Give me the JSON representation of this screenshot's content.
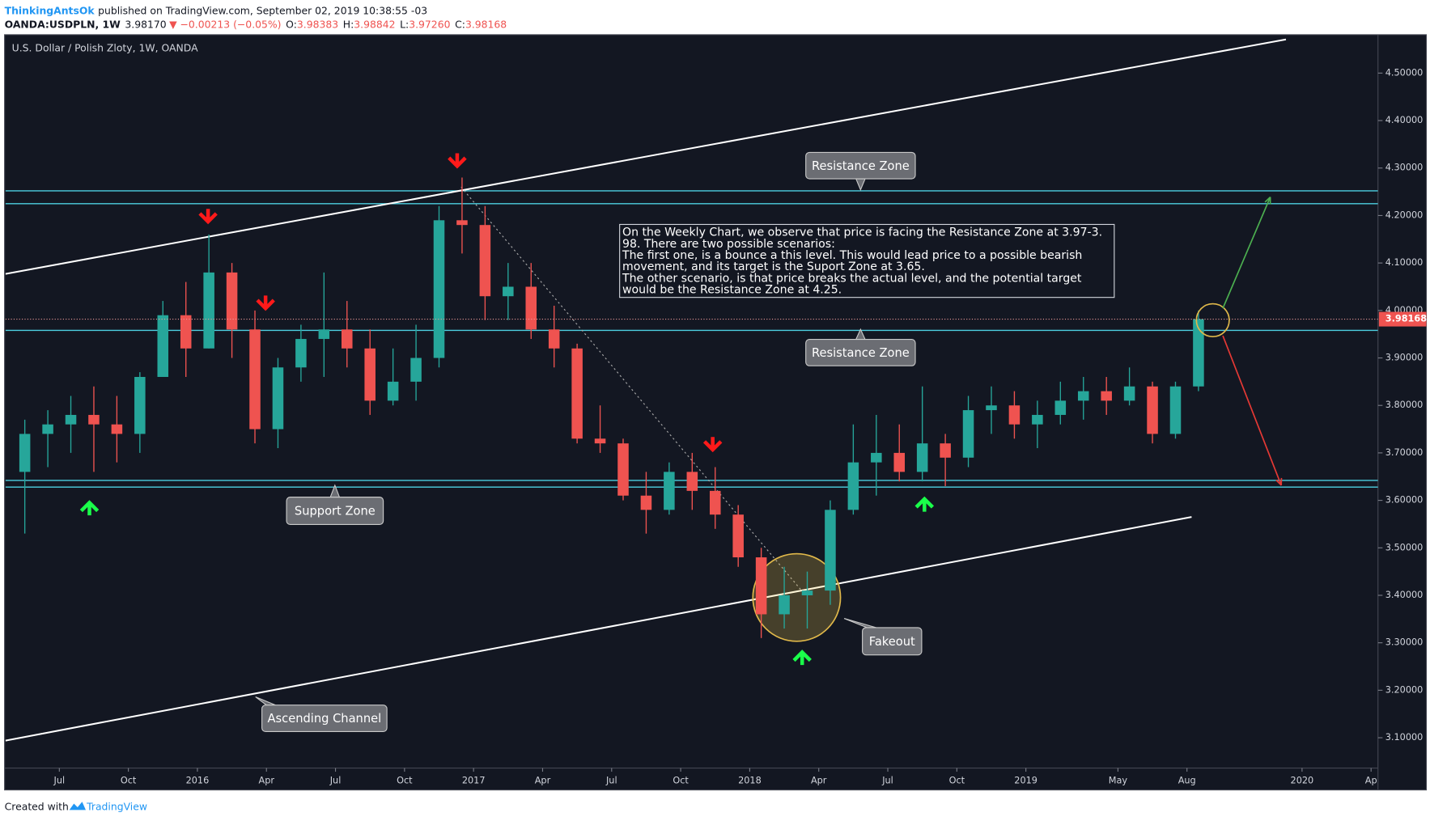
{
  "header": {
    "author": "ThinkingAntsOk",
    "published": "published on TradingView.com, September 02, 2019 10:38:55 -03",
    "symbol": "OANDA:USDPLN, 1W",
    "price": "3.98170",
    "change": "▼ −0.00213 (−0.05%)",
    "ohlc": [
      {
        "label": "O:",
        "value": "3.98383"
      },
      {
        "label": "H:",
        "value": "3.98842"
      },
      {
        "label": "L:",
        "value": "3.97260"
      },
      {
        "label": "C:",
        "value": "3.98168"
      }
    ]
  },
  "footer": {
    "created": "Created with",
    "brand": "TradingView"
  },
  "chart_data": {
    "type": "candlestick",
    "title": "U.S. Dollar / Polish Zloty, 1W, OANDA",
    "up_color": "#26a69a",
    "down_color": "#ef5350",
    "x": [
      4.5,
      5.5,
      6.5,
      7.5,
      8.5,
      9.5,
      10.5,
      11.5,
      12.5,
      13.5,
      14.5,
      15.5,
      16.5,
      17.5,
      18.5,
      19.5,
      20.5,
      21.5,
      22.5,
      23.5,
      24.5,
      25.5,
      26.5,
      27.5,
      28.5,
      29.5,
      30.5,
      31.5,
      32.5,
      33.5,
      34.5,
      35.5,
      36.5,
      37.5,
      38.5,
      39.5,
      40.5,
      41.5,
      42.5,
      43.5,
      44.5,
      45.5,
      46.5,
      47.5,
      48.5,
      49.5,
      50.5,
      51.5,
      52.5,
      53.5,
      54.5,
      55.5
    ],
    "open": [
      3.66,
      3.74,
      3.76,
      3.78,
      3.76,
      3.74,
      3.86,
      3.99,
      3.92,
      4.08,
      3.96,
      3.75,
      3.88,
      3.94,
      3.96,
      3.92,
      3.81,
      3.85,
      3.9,
      4.19,
      4.18,
      4.03,
      4.05,
      3.96,
      3.92,
      3.73,
      3.72,
      3.61,
      3.58,
      3.66,
      3.62,
      3.57,
      3.48,
      3.36,
      3.4,
      3.41,
      3.58,
      3.68,
      3.7,
      3.66,
      3.72,
      3.69,
      3.79,
      3.8,
      3.76,
      3.78,
      3.81,
      3.83,
      3.81,
      3.84,
      3.74,
      3.84
    ],
    "high": [
      3.77,
      3.79,
      3.82,
      3.84,
      3.82,
      3.87,
      4.02,
      4.06,
      4.16,
      4.1,
      4.0,
      3.9,
      3.97,
      4.08,
      4.02,
      3.96,
      3.92,
      3.97,
      4.22,
      4.28,
      4.22,
      4.1,
      4.1,
      4.01,
      3.93,
      3.8,
      3.73,
      3.66,
      3.68,
      3.7,
      3.67,
      3.59,
      3.5,
      3.46,
      3.45,
      3.6,
      3.76,
      3.78,
      3.76,
      3.84,
      3.74,
      3.82,
      3.84,
      3.83,
      3.81,
      3.85,
      3.86,
      3.86,
      3.88,
      3.85,
      3.85,
      4.0
    ],
    "low": [
      3.53,
      3.67,
      3.7,
      3.66,
      3.68,
      3.7,
      3.86,
      3.86,
      3.92,
      3.9,
      3.72,
      3.71,
      3.85,
      3.86,
      3.88,
      3.78,
      3.8,
      3.81,
      3.88,
      4.12,
      3.98,
      3.98,
      3.94,
      3.88,
      3.72,
      3.7,
      3.6,
      3.53,
      3.57,
      3.58,
      3.54,
      3.46,
      3.31,
      3.33,
      3.33,
      3.38,
      3.57,
      3.61,
      3.64,
      3.64,
      3.63,
      3.67,
      3.74,
      3.73,
      3.71,
      3.76,
      3.77,
      3.78,
      3.8,
      3.72,
      3.73,
      3.83
    ],
    "close": [
      3.74,
      3.76,
      3.78,
      3.76,
      3.74,
      3.86,
      3.99,
      3.92,
      4.08,
      3.96,
      3.75,
      3.88,
      3.94,
      3.96,
      3.92,
      3.81,
      3.85,
      3.9,
      4.19,
      4.18,
      4.03,
      4.05,
      3.96,
      3.92,
      3.73,
      3.72,
      3.61,
      3.58,
      3.66,
      3.62,
      3.57,
      3.48,
      3.36,
      3.4,
      3.41,
      3.58,
      3.68,
      3.7,
      3.66,
      3.72,
      3.69,
      3.79,
      3.8,
      3.76,
      3.78,
      3.81,
      3.83,
      3.81,
      3.84,
      3.74,
      3.84,
      3.98168
    ],
    "xlim": [
      3.66,
      63.3
    ],
    "xticks": [
      {
        "value": 6,
        "label": "Jul"
      },
      {
        "value": 9,
        "label": "Oct"
      },
      {
        "value": 12,
        "label": "2016"
      },
      {
        "value": 15,
        "label": "Apr"
      },
      {
        "value": 18,
        "label": "Jul"
      },
      {
        "value": 21,
        "label": "Oct"
      },
      {
        "value": 24,
        "label": "2017"
      },
      {
        "value": 27,
        "label": "Apr"
      },
      {
        "value": 30,
        "label": "Jul"
      },
      {
        "value": 33,
        "label": "Oct"
      },
      {
        "value": 36,
        "label": "2018"
      },
      {
        "value": 39,
        "label": "Apr"
      },
      {
        "value": 42,
        "label": "Jul"
      },
      {
        "value": 45,
        "label": "Oct"
      },
      {
        "value": 48,
        "label": "2019"
      },
      {
        "value": 52,
        "label": "May"
      },
      {
        "value": 55,
        "label": "Aug"
      },
      {
        "value": 60,
        "label": "2020"
      },
      {
        "value": 63,
        "label": "Ap"
      }
    ],
    "ylim": [
      3.04,
      4.577
    ],
    "yticks": [
      {
        "value": 3.1,
        "label": "3.10000"
      },
      {
        "value": 3.2,
        "label": "3.20000"
      },
      {
        "value": 3.3,
        "label": "3.30000"
      },
      {
        "value": 3.4,
        "label": "3.40000"
      },
      {
        "value": 3.5,
        "label": "3.50000"
      },
      {
        "value": 3.6,
        "label": "3.60000"
      },
      {
        "value": 3.7,
        "label": "3.70000"
      },
      {
        "value": 3.8,
        "label": "3.80000"
      },
      {
        "value": 3.9,
        "label": "3.90000"
      },
      {
        "value": 4.0,
        "label": "4.00000"
      },
      {
        "value": 4.1,
        "label": "4.10000"
      },
      {
        "value": 4.2,
        "label": "4.20000"
      },
      {
        "value": 4.3,
        "label": "4.30000"
      },
      {
        "value": 4.4,
        "label": "4.40000"
      },
      {
        "value": 4.5,
        "label": "4.50000"
      }
    ],
    "levels": [
      4.252,
      4.225,
      3.958,
      3.642,
      3.628
    ],
    "trendlines": [
      [
        [
          3.66,
          4.077
        ],
        [
          59.3,
          4.571
        ]
      ],
      [
        [
          3.66,
          3.094
        ],
        [
          55.2,
          3.565
        ]
      ],
      [
        [
          23.46,
          4.26
        ],
        [
          38.34,
          3.405
        ]
      ]
    ],
    "annotations": [
      "Resistance Zone",
      "Resistance Zone",
      "Support Zone",
      "Fakeout",
      "Ascending Channel"
    ],
    "note": [
      "On the Weekly Chart, we observe that price is facing the Resistance Zone at 3.97-3.",
      "98. There are two possible scenarios:",
      "The first one, is a bounce a this level. This would lead price to a possible bearish",
      "movement, and its target is the Suport Zone at 3.65.",
      "The other scenario, is that price breaks the actual level, and the potential target",
      "would be the Resistance Zone at 4.25."
    ]
  }
}
